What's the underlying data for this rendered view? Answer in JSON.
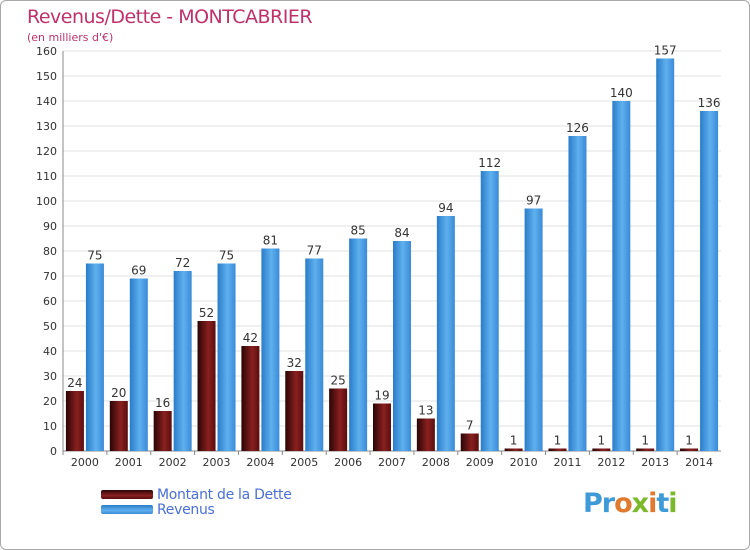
{
  "chart_data": {
    "type": "bar",
    "title": "Revenus/Dette - MONTCABRIER",
    "subtitle": "(en milliers d'€)",
    "categories": [
      "2000",
      "2001",
      "2002",
      "2003",
      "2004",
      "2005",
      "2006",
      "2007",
      "2008",
      "2009",
      "2010",
      "2011",
      "2012",
      "2013",
      "2014"
    ],
    "series": [
      {
        "name": "Montant de la Dette",
        "color": "#7a1a1a",
        "values": [
          24,
          20,
          16,
          52,
          42,
          32,
          25,
          19,
          13,
          7,
          1,
          1,
          1,
          1,
          1
        ]
      },
      {
        "name": "Revenus",
        "color": "#3d93dc",
        "values": [
          75,
          69,
          72,
          75,
          81,
          77,
          85,
          84,
          94,
          112,
          97,
          126,
          140,
          157,
          136
        ]
      }
    ],
    "ylim": [
      0,
      160
    ],
    "yticks": [
      0,
      10,
      20,
      30,
      40,
      50,
      60,
      70,
      80,
      90,
      100,
      110,
      120,
      130,
      140,
      150,
      160
    ],
    "grid": true,
    "legend_position": "bottom-left"
  },
  "logo": {
    "text": "Proxiti"
  }
}
